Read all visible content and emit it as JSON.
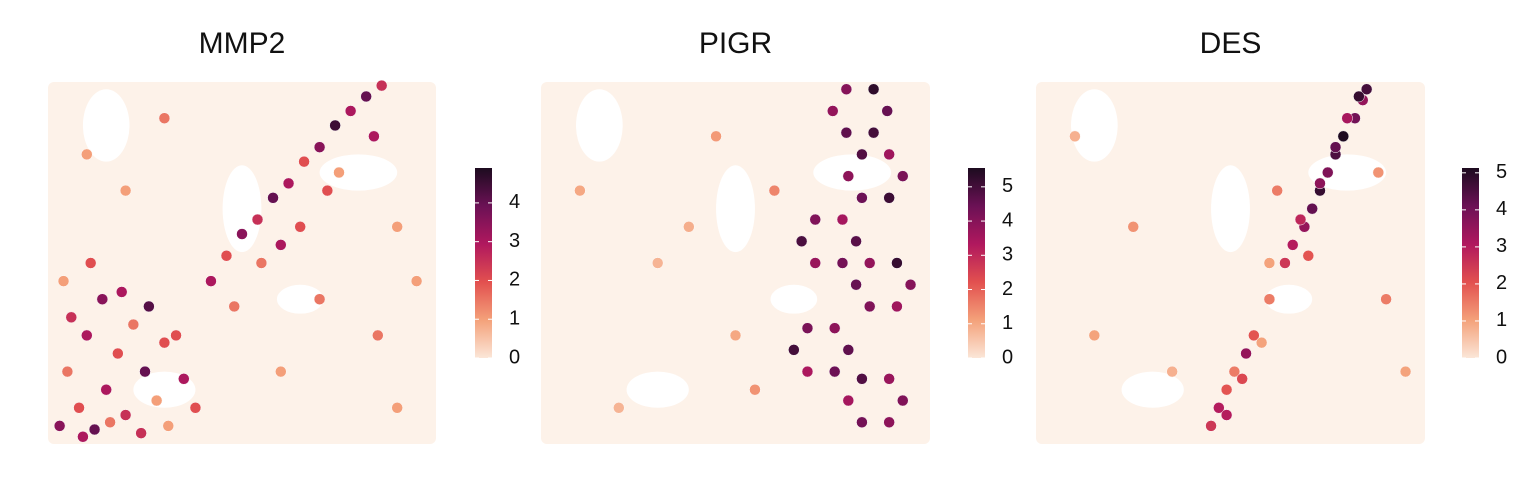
{
  "chart_data": [
    {
      "type": "scatter",
      "title": "MMP2",
      "x": [
        3,
        8,
        12,
        5,
        15,
        20,
        25,
        10,
        18,
        28,
        6,
        14,
        22,
        30,
        35,
        4,
        11,
        19,
        26,
        33,
        9,
        16,
        24,
        31,
        38,
        42,
        46,
        50,
        54,
        58,
        62,
        66,
        70,
        74,
        78,
        82,
        86,
        55,
        65,
        75,
        48,
        60,
        72,
        84,
        90,
        10,
        30,
        60,
        85,
        90,
        95,
        20,
        70
      ],
      "y": [
        5,
        10,
        4,
        20,
        15,
        8,
        20,
        30,
        25,
        12,
        35,
        40,
        33,
        28,
        18,
        45,
        50,
        42,
        38,
        30,
        2,
        6,
        3,
        5,
        10,
        45,
        52,
        58,
        62,
        68,
        72,
        78,
        82,
        88,
        92,
        96,
        99,
        50,
        60,
        75,
        38,
        55,
        70,
        85,
        60,
        80,
        90,
        20,
        30,
        10,
        45,
        70,
        40
      ],
      "values": [
        3.5,
        2,
        4,
        1.5,
        3,
        2.5,
        4,
        3,
        2,
        1,
        2.5,
        3.5,
        1.5,
        2,
        3,
        1,
        2,
        3,
        4.2,
        2,
        3,
        1.5,
        2.5,
        1,
        2,
        3,
        2,
        3.5,
        2.5,
        4,
        3,
        2,
        3.5,
        4.5,
        3,
        4,
        2.5,
        1.5,
        2,
        1,
        1.5,
        3,
        2,
        3,
        1,
        1,
        1.5,
        1,
        1.5,
        1,
        1,
        1,
        1.5
      ],
      "xlim": [
        0,
        100
      ],
      "ylim": [
        0,
        100
      ],
      "clim": [
        0,
        4.9
      ],
      "cticks": [
        0,
        1,
        2,
        3,
        4
      ],
      "colormap": [
        "#fbe6d8",
        "#f4a17a",
        "#e2504f",
        "#b0185e",
        "#6b1155",
        "#1d0b1f"
      ]
    },
    {
      "type": "scatter",
      "title": "PIGR",
      "x": [
        89,
        85.5,
        78.5,
        75,
        78.5,
        85.5,
        93,
        89.5,
        82.5,
        79,
        82.5,
        89.5,
        81,
        77.5,
        70.5,
        67,
        70.5,
        77.5,
        95,
        91.5,
        84.5,
        81,
        84.5,
        91.5,
        79,
        75.5,
        68.5,
        65,
        68.5,
        75.5,
        93,
        89.5,
        82.5,
        79,
        82.5,
        89.5,
        10,
        30,
        45,
        50,
        20,
        60,
        55,
        38
      ],
      "y": [
        92,
        98,
        98,
        92,
        86,
        86,
        74,
        80,
        80,
        74,
        68,
        68,
        56,
        62,
        62,
        56,
        50,
        50,
        44,
        50,
        50,
        44,
        38,
        38,
        26,
        32,
        32,
        26,
        20,
        20,
        12,
        18,
        18,
        12,
        6,
        6,
        70,
        50,
        85,
        30,
        10,
        70,
        15,
        60
      ],
      "values": [
        4.5,
        5.3,
        4,
        3.8,
        4.6,
        5,
        4.2,
        3.6,
        4.8,
        3.9,
        4.4,
        5.1,
        4.7,
        3.5,
        4.1,
        4.9,
        3.7,
        4.3,
        4,
        5.2,
        3.8,
        4.5,
        4.1,
        3.6,
        4.6,
        3.9,
        4.2,
        5,
        3.4,
        4.4,
        4.1,
        3.7,
        4.8,
        3.5,
        4.3,
        3.9,
        1,
        0.8,
        1.2,
        1,
        0.8,
        1.5,
        1.3,
        0.9
      ],
      "xlim": [
        0,
        100
      ],
      "ylim": [
        0,
        100
      ],
      "clim": [
        0,
        5.55
      ],
      "cticks": [
        0,
        1,
        2,
        3,
        4,
        5
      ],
      "colormap": [
        "#fbe6d8",
        "#f4a17a",
        "#e2504f",
        "#b0185e",
        "#6b1155",
        "#1d0b1f"
      ]
    },
    {
      "type": "scatter",
      "title": "DES",
      "x": [
        45,
        47,
        49,
        51,
        54,
        56,
        60,
        64,
        66,
        69,
        71,
        73,
        75,
        77,
        79,
        82,
        84,
        85,
        49,
        53,
        58,
        68,
        73,
        77,
        80,
        83,
        70,
        62,
        15,
        25,
        35,
        60,
        90,
        95,
        10,
        88
      ],
      "y": [
        5,
        10,
        15,
        20,
        25,
        30,
        40,
        50,
        55,
        60,
        65,
        70,
        75,
        80,
        85,
        90,
        95,
        98,
        8,
        18,
        28,
        62,
        72,
        82,
        90,
        96,
        52,
        70,
        30,
        60,
        20,
        50,
        40,
        20,
        85,
        75
      ],
      "values": [
        2.5,
        3,
        2,
        1.5,
        3.5,
        2,
        1.5,
        2.5,
        3,
        3.5,
        4.2,
        4.8,
        3.8,
        4.5,
        5.1,
        4,
        3.5,
        4.6,
        3,
        2.2,
        1,
        2.8,
        3.6,
        4.2,
        3.2,
        4.8,
        2,
        1.5,
        1,
        1.2,
        0.8,
        1,
        1.5,
        1,
        0.8,
        1.2
      ],
      "xlim": [
        0,
        100
      ],
      "ylim": [
        0,
        100
      ],
      "clim": [
        0,
        5.13
      ],
      "cticks": [
        0,
        1,
        2,
        3,
        4,
        5
      ],
      "colormap": [
        "#fbe6d8",
        "#f4a17a",
        "#e2504f",
        "#b0185e",
        "#6b1155",
        "#1d0b1f"
      ]
    }
  ]
}
